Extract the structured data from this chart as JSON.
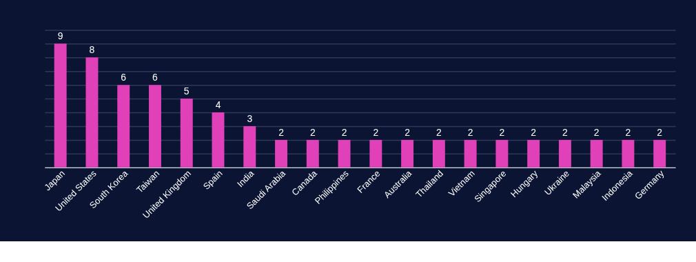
{
  "chart_data": {
    "type": "bar",
    "categories": [
      "Japan",
      "United States",
      "South Korea",
      "Taiwan",
      "United Kingdom",
      "Spain",
      "India",
      "Saudi Arabia",
      "Canada",
      "Philippines",
      "France",
      "Australia",
      "Thailand",
      "Vietnam",
      "Singapore",
      "Hungary",
      "Ukraine",
      "Malaysia",
      "Indonesia",
      "Germany"
    ],
    "values": [
      9,
      8,
      6,
      6,
      5,
      4,
      3,
      2,
      2,
      2,
      2,
      2,
      2,
      2,
      2,
      2,
      2,
      2,
      2,
      2
    ],
    "color": "#e040b8",
    "ylim": [
      0,
      10
    ],
    "yticks": [
      {
        "value": 0,
        "label": null
      },
      {
        "value": 1,
        "label": null
      },
      {
        "value": 2,
        "label": null
      },
      {
        "value": 3,
        "label": null
      },
      {
        "value": 4,
        "label": null
      },
      {
        "value": 5,
        "label": null
      },
      {
        "value": 6,
        "label": null
      },
      {
        "value": 7,
        "label": null
      },
      {
        "value": 8,
        "label": null
      },
      {
        "value": 9,
        "label": null
      },
      {
        "value": 10,
        "label": null
      }
    ],
    "grid": "y",
    "data_labels": true,
    "tick_labels": "x"
  }
}
